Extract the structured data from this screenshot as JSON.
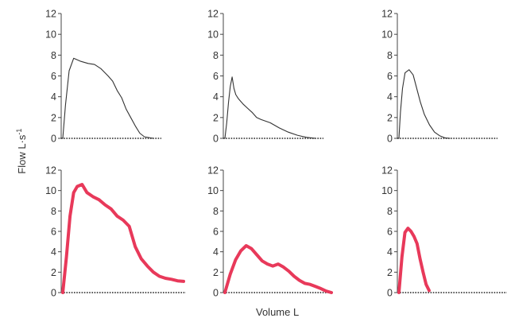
{
  "labels": {
    "ylabel": "Flow L·s",
    "ylabel_exp": "-1",
    "xlabel": "Volume L"
  },
  "colors": {
    "top_line": "#333333",
    "bottom_line": "#e8395a",
    "axis": "#444444"
  },
  "chart_data": [
    {
      "type": "line",
      "panel": "top-left",
      "ylim": [
        0,
        12
      ],
      "yticks": [
        "0",
        "2",
        "4",
        "6",
        "8",
        "10",
        "12"
      ],
      "x": [
        0,
        0.03,
        0.07,
        0.12,
        0.2,
        0.28,
        0.35,
        0.42,
        0.5,
        0.55,
        0.6,
        0.65,
        0.7,
        0.75,
        0.8,
        0.85,
        0.9,
        1.0
      ],
      "values": [
        0,
        3.2,
        6.5,
        7.7,
        7.4,
        7.2,
        7.1,
        6.7,
        6.0,
        5.5,
        4.6,
        3.9,
        2.8,
        2.0,
        1.2,
        0.5,
        0.15,
        0
      ]
    },
    {
      "type": "line",
      "panel": "top-middle",
      "ylim": [
        0,
        12
      ],
      "yticks": [
        "0",
        "2",
        "4",
        "6",
        "8",
        "10",
        "12"
      ],
      "x": [
        0,
        0.02,
        0.04,
        0.06,
        0.08,
        0.1,
        0.12,
        0.15,
        0.2,
        0.25,
        0.3,
        0.35,
        0.4,
        0.5,
        0.6,
        0.7,
        0.8,
        0.9,
        1.0
      ],
      "values": [
        0,
        1.5,
        3.5,
        5.0,
        5.9,
        4.8,
        4.2,
        3.8,
        3.3,
        2.9,
        2.5,
        2.0,
        1.8,
        1.5,
        1.0,
        0.6,
        0.3,
        0.1,
        0
      ]
    },
    {
      "type": "line",
      "panel": "top-right",
      "ylim": [
        0,
        12
      ],
      "yticks": [
        "0",
        "2",
        "4",
        "6",
        "8",
        "10",
        "12"
      ],
      "x": [
        0,
        0.03,
        0.07,
        0.12,
        0.2,
        0.28,
        0.35,
        0.42,
        0.5,
        0.6,
        0.7,
        0.8,
        0.9,
        1.0
      ],
      "values": [
        0,
        2.5,
        4.8,
        6.3,
        6.6,
        6.1,
        4.8,
        3.5,
        2.3,
        1.3,
        0.6,
        0.25,
        0.05,
        0
      ]
    },
    {
      "type": "line",
      "panel": "bottom-left",
      "ylim": [
        0,
        12
      ],
      "yticks": [
        "0",
        "2",
        "4",
        "6",
        "8",
        "10",
        "12"
      ],
      "x": [
        0,
        0.03,
        0.06,
        0.09,
        0.12,
        0.16,
        0.2,
        0.25,
        0.3,
        0.35,
        0.4,
        0.45,
        0.5,
        0.55,
        0.6,
        0.65,
        0.7,
        0.75,
        0.8,
        0.85,
        0.9,
        0.95,
        1.0
      ],
      "values": [
        0,
        3.5,
        7.5,
        9.8,
        10.4,
        10.6,
        9.8,
        9.4,
        9.1,
        8.6,
        8.2,
        7.5,
        7.1,
        6.5,
        4.5,
        3.3,
        2.6,
        2.0,
        1.6,
        1.4,
        1.3,
        1.15,
        1.1
      ]
    },
    {
      "type": "line",
      "panel": "bottom-middle",
      "ylim": [
        0,
        12
      ],
      "yticks": [
        "0",
        "2",
        "4",
        "6",
        "8",
        "10",
        "12"
      ],
      "x": [
        0,
        0.05,
        0.1,
        0.15,
        0.2,
        0.25,
        0.3,
        0.35,
        0.4,
        0.45,
        0.5,
        0.55,
        0.6,
        0.65,
        0.7,
        0.75,
        0.8,
        0.85,
        0.9,
        0.95,
        1.0
      ],
      "values": [
        0,
        1.8,
        3.2,
        4.1,
        4.6,
        4.3,
        3.7,
        3.1,
        2.8,
        2.6,
        2.8,
        2.5,
        2.1,
        1.6,
        1.2,
        0.9,
        0.8,
        0.6,
        0.4,
        0.15,
        0
      ]
    },
    {
      "type": "line",
      "panel": "bottom-right",
      "ylim": [
        0,
        12
      ],
      "yticks": [
        "0",
        "2",
        "4",
        "6",
        "8",
        "10",
        "12"
      ],
      "x": [
        0,
        0.1,
        0.2,
        0.3,
        0.4,
        0.5,
        0.6,
        0.7,
        0.8,
        0.9,
        1.0
      ],
      "values": [
        0,
        3.5,
        5.9,
        6.3,
        6.0,
        5.5,
        4.8,
        3.3,
        2.0,
        0.8,
        0.2
      ]
    }
  ]
}
